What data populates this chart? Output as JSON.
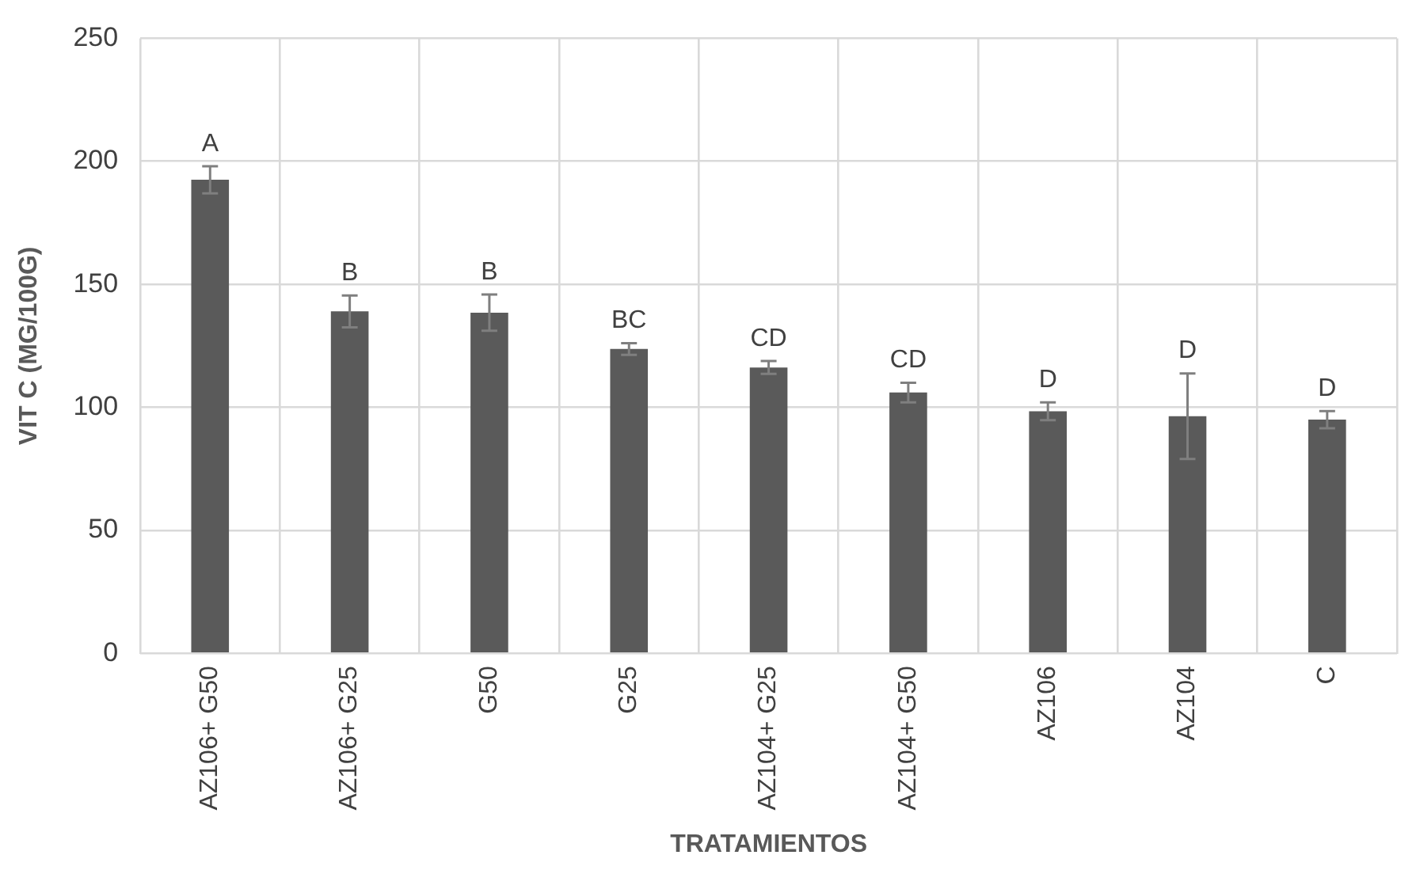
{
  "chart_data": {
    "type": "bar",
    "xlabel": "TRATAMIENTOS",
    "ylabel": "VIT C (MG/100G)",
    "categories": [
      "AZ106+ G50",
      "AZ106+ G25",
      "G50",
      "G25",
      "AZ104+ G25",
      "AZ104+ G50",
      "AZ106",
      "AZ104",
      "C"
    ],
    "values": [
      192.5,
      139,
      138.5,
      123.7,
      116.2,
      106,
      98.4,
      96.4,
      95
    ],
    "errors": [
      5.5,
      6.5,
      7.4,
      2.4,
      2.6,
      4,
      3.6,
      17.4,
      3.5
    ],
    "color": "#5a5a5a",
    "ylim": [
      0,
      250
    ],
    "yticks": [
      0,
      50,
      100,
      150,
      200,
      250
    ],
    "grid": true,
    "annotations": [
      {
        "text": "A",
        "x": "AZ106+ G50",
        "y": 198
      },
      {
        "text": "B",
        "x": "AZ106+ G25",
        "y": 145.5
      },
      {
        "text": "B",
        "x": "G50",
        "y": 145.9
      },
      {
        "text": "BC",
        "x": "G25",
        "y": 126.1
      },
      {
        "text": "CD",
        "x": "AZ104+ G25",
        "y": 118.8
      },
      {
        "text": "CD",
        "x": "AZ104+ G50",
        "y": 110
      },
      {
        "text": "D",
        "x": "AZ106",
        "y": 102
      },
      {
        "text": "D",
        "x": "AZ104",
        "y": 113.8
      },
      {
        "text": "D",
        "x": "C",
        "y": 98.5
      }
    ]
  }
}
